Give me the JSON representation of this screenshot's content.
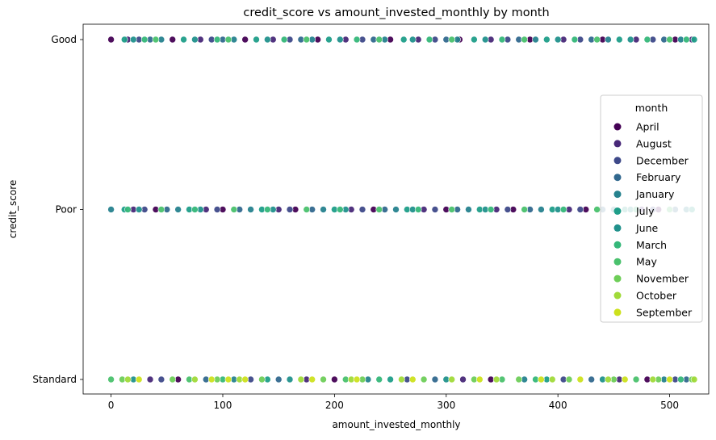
{
  "chart_data": {
    "type": "scatter",
    "title": "credit_score vs amount_invested_monthly by month",
    "xlabel": "amount_invested_monthly",
    "ylabel": "credit_score",
    "xlim": [
      -25,
      535
    ],
    "x_ticks": [
      0,
      100,
      200,
      300,
      400,
      500
    ],
    "categories": [
      "Good",
      "Poor",
      "Standard"
    ],
    "grid": false,
    "legend": {
      "title": "month",
      "placement": "center-right",
      "entries": [
        "April",
        "August",
        "December",
        "February",
        "January",
        "July",
        "June",
        "March",
        "May",
        "November",
        "October",
        "September"
      ]
    },
    "series": [
      {
        "name": "April",
        "color": "#440154",
        "points": [
          [
            0,
            "Good"
          ],
          [
            55,
            "Good"
          ],
          [
            120,
            "Good"
          ],
          [
            185,
            "Good"
          ],
          [
            250,
            "Good"
          ],
          [
            312,
            "Good"
          ],
          [
            375,
            "Good"
          ],
          [
            440,
            "Good"
          ],
          [
            505,
            "Good"
          ],
          [
            40,
            "Poor"
          ],
          [
            100,
            "Poor"
          ],
          [
            165,
            "Poor"
          ],
          [
            235,
            "Poor"
          ],
          [
            300,
            "Poor"
          ],
          [
            360,
            "Poor"
          ],
          [
            425,
            "Poor"
          ],
          [
            490,
            "Poor"
          ],
          [
            60,
            "Standard"
          ],
          [
            200,
            "Standard"
          ],
          [
            340,
            "Standard"
          ],
          [
            480,
            "Standard"
          ]
        ]
      },
      {
        "name": "August",
        "color": "#482878",
        "points": [
          [
            15,
            "Good"
          ],
          [
            80,
            "Good"
          ],
          [
            145,
            "Good"
          ],
          [
            210,
            "Good"
          ],
          [
            275,
            "Good"
          ],
          [
            340,
            "Good"
          ],
          [
            405,
            "Good"
          ],
          [
            470,
            "Good"
          ],
          [
            520,
            "Good"
          ],
          [
            20,
            "Poor"
          ],
          [
            85,
            "Poor"
          ],
          [
            150,
            "Poor"
          ],
          [
            215,
            "Poor"
          ],
          [
            280,
            "Poor"
          ],
          [
            345,
            "Poor"
          ],
          [
            410,
            "Poor"
          ],
          [
            475,
            "Poor"
          ],
          [
            35,
            "Standard"
          ],
          [
            175,
            "Standard"
          ],
          [
            315,
            "Standard"
          ],
          [
            455,
            "Standard"
          ]
        ]
      },
      {
        "name": "December",
        "color": "#3e4989",
        "points": [
          [
            25,
            "Good"
          ],
          [
            90,
            "Good"
          ],
          [
            160,
            "Good"
          ],
          [
            225,
            "Good"
          ],
          [
            290,
            "Good"
          ],
          [
            355,
            "Good"
          ],
          [
            420,
            "Good"
          ],
          [
            485,
            "Good"
          ],
          [
            30,
            "Poor"
          ],
          [
            95,
            "Poor"
          ],
          [
            160,
            "Poor"
          ],
          [
            225,
            "Poor"
          ],
          [
            290,
            "Poor"
          ],
          [
            355,
            "Poor"
          ],
          [
            420,
            "Poor"
          ],
          [
            485,
            "Poor"
          ],
          [
            45,
            "Standard"
          ],
          [
            125,
            "Standard"
          ],
          [
            265,
            "Standard"
          ],
          [
            405,
            "Standard"
          ],
          [
            505,
            "Standard"
          ]
        ]
      },
      {
        "name": "February",
        "color": "#31688e",
        "points": [
          [
            35,
            "Good"
          ],
          [
            100,
            "Good"
          ],
          [
            170,
            "Good"
          ],
          [
            235,
            "Good"
          ],
          [
            300,
            "Good"
          ],
          [
            365,
            "Good"
          ],
          [
            430,
            "Good"
          ],
          [
            495,
            "Good"
          ],
          [
            50,
            "Poor"
          ],
          [
            115,
            "Poor"
          ],
          [
            180,
            "Poor"
          ],
          [
            245,
            "Poor"
          ],
          [
            310,
            "Poor"
          ],
          [
            375,
            "Poor"
          ],
          [
            440,
            "Poor"
          ],
          [
            505,
            "Poor"
          ],
          [
            85,
            "Standard"
          ],
          [
            150,
            "Standard"
          ],
          [
            290,
            "Standard"
          ],
          [
            430,
            "Standard"
          ],
          [
            515,
            "Standard"
          ]
        ]
      },
      {
        "name": "January",
        "color": "#26828e",
        "points": [
          [
            45,
            "Good"
          ],
          [
            110,
            "Good"
          ],
          [
            180,
            "Good"
          ],
          [
            245,
            "Good"
          ],
          [
            310,
            "Good"
          ],
          [
            380,
            "Good"
          ],
          [
            445,
            "Good"
          ],
          [
            510,
            "Good"
          ],
          [
            0,
            "Poor"
          ],
          [
            60,
            "Poor"
          ],
          [
            125,
            "Poor"
          ],
          [
            190,
            "Poor"
          ],
          [
            255,
            "Poor"
          ],
          [
            320,
            "Poor"
          ],
          [
            385,
            "Poor"
          ],
          [
            450,
            "Poor"
          ],
          [
            515,
            "Poor"
          ],
          [
            110,
            "Standard"
          ],
          [
            230,
            "Standard"
          ],
          [
            370,
            "Standard"
          ],
          [
            495,
            "Standard"
          ]
        ]
      },
      {
        "name": "July",
        "color": "#1f9e89",
        "points": [
          [
            12,
            "Good"
          ],
          [
            65,
            "Good"
          ],
          [
            130,
            "Good"
          ],
          [
            195,
            "Good"
          ],
          [
            262,
            "Good"
          ],
          [
            325,
            "Good"
          ],
          [
            390,
            "Good"
          ],
          [
            455,
            "Good"
          ],
          [
            522,
            "Good"
          ],
          [
            12,
            "Poor"
          ],
          [
            70,
            "Poor"
          ],
          [
            135,
            "Poor"
          ],
          [
            200,
            "Poor"
          ],
          [
            265,
            "Poor"
          ],
          [
            330,
            "Poor"
          ],
          [
            395,
            "Poor"
          ],
          [
            460,
            "Poor"
          ],
          [
            520,
            "Poor"
          ],
          [
            140,
            "Standard"
          ],
          [
            250,
            "Standard"
          ],
          [
            390,
            "Standard"
          ]
        ]
      },
      {
        "name": "June",
        "color": "#21918c",
        "points": [
          [
            20,
            "Good"
          ],
          [
            75,
            "Good"
          ],
          [
            140,
            "Good"
          ],
          [
            205,
            "Good"
          ],
          [
            270,
            "Good"
          ],
          [
            335,
            "Good"
          ],
          [
            400,
            "Good"
          ],
          [
            465,
            "Good"
          ],
          [
            25,
            "Poor"
          ],
          [
            80,
            "Poor"
          ],
          [
            145,
            "Poor"
          ],
          [
            210,
            "Poor"
          ],
          [
            270,
            "Poor"
          ],
          [
            335,
            "Poor"
          ],
          [
            400,
            "Poor"
          ],
          [
            465,
            "Poor"
          ],
          [
            20,
            "Standard"
          ],
          [
            160,
            "Standard"
          ],
          [
            300,
            "Standard"
          ],
          [
            440,
            "Standard"
          ]
        ]
      },
      {
        "name": "March",
        "color": "#35b779",
        "points": [
          [
            30,
            "Good"
          ],
          [
            95,
            "Good"
          ],
          [
            155,
            "Good"
          ],
          [
            220,
            "Good"
          ],
          [
            285,
            "Good"
          ],
          [
            350,
            "Good"
          ],
          [
            415,
            "Good"
          ],
          [
            480,
            "Good"
          ],
          [
            515,
            "Good"
          ],
          [
            15,
            "Poor"
          ],
          [
            75,
            "Poor"
          ],
          [
            140,
            "Poor"
          ],
          [
            205,
            "Poor"
          ],
          [
            275,
            "Poor"
          ],
          [
            340,
            "Poor"
          ],
          [
            405,
            "Poor"
          ],
          [
            470,
            "Poor"
          ],
          [
            100,
            "Standard"
          ],
          [
            240,
            "Standard"
          ],
          [
            380,
            "Standard"
          ],
          [
            510,
            "Standard"
          ]
        ]
      },
      {
        "name": "May",
        "color": "#4ac16d",
        "points": [
          [
            40,
            "Good"
          ],
          [
            105,
            "Good"
          ],
          [
            175,
            "Good"
          ],
          [
            240,
            "Good"
          ],
          [
            305,
            "Good"
          ],
          [
            370,
            "Good"
          ],
          [
            435,
            "Good"
          ],
          [
            500,
            "Good"
          ],
          [
            45,
            "Poor"
          ],
          [
            110,
            "Poor"
          ],
          [
            175,
            "Poor"
          ],
          [
            240,
            "Poor"
          ],
          [
            305,
            "Poor"
          ],
          [
            370,
            "Poor"
          ],
          [
            435,
            "Poor"
          ],
          [
            500,
            "Poor"
          ],
          [
            0,
            "Standard"
          ],
          [
            70,
            "Standard"
          ],
          [
            210,
            "Standard"
          ],
          [
            350,
            "Standard"
          ],
          [
            470,
            "Standard"
          ]
        ]
      },
      {
        "name": "November",
        "color": "#6ece58",
        "points": [
          [
            10,
            "Standard"
          ],
          [
            55,
            "Standard"
          ],
          [
            95,
            "Standard"
          ],
          [
            135,
            "Standard"
          ],
          [
            190,
            "Standard"
          ],
          [
            225,
            "Standard"
          ],
          [
            280,
            "Standard"
          ],
          [
            325,
            "Standard"
          ],
          [
            365,
            "Standard"
          ],
          [
            410,
            "Standard"
          ],
          [
            450,
            "Standard"
          ],
          [
            490,
            "Standard"
          ],
          [
            520,
            "Standard"
          ]
        ]
      },
      {
        "name": "October",
        "color": "#a0da39",
        "points": [
          [
            15,
            "Standard"
          ],
          [
            75,
            "Standard"
          ],
          [
            115,
            "Standard"
          ],
          [
            170,
            "Standard"
          ],
          [
            215,
            "Standard"
          ],
          [
            260,
            "Standard"
          ],
          [
            305,
            "Standard"
          ],
          [
            345,
            "Standard"
          ],
          [
            395,
            "Standard"
          ],
          [
            445,
            "Standard"
          ],
          [
            485,
            "Standard"
          ],
          [
            522,
            "Standard"
          ]
        ]
      },
      {
        "name": "September",
        "color": "#cde11d",
        "points": [
          [
            25,
            "Standard"
          ],
          [
            90,
            "Standard"
          ],
          [
            105,
            "Standard"
          ],
          [
            120,
            "Standard"
          ],
          [
            180,
            "Standard"
          ],
          [
            220,
            "Standard"
          ],
          [
            270,
            "Standard"
          ],
          [
            330,
            "Standard"
          ],
          [
            385,
            "Standard"
          ],
          [
            420,
            "Standard"
          ],
          [
            460,
            "Standard"
          ],
          [
            500,
            "Standard"
          ]
        ]
      }
    ]
  }
}
